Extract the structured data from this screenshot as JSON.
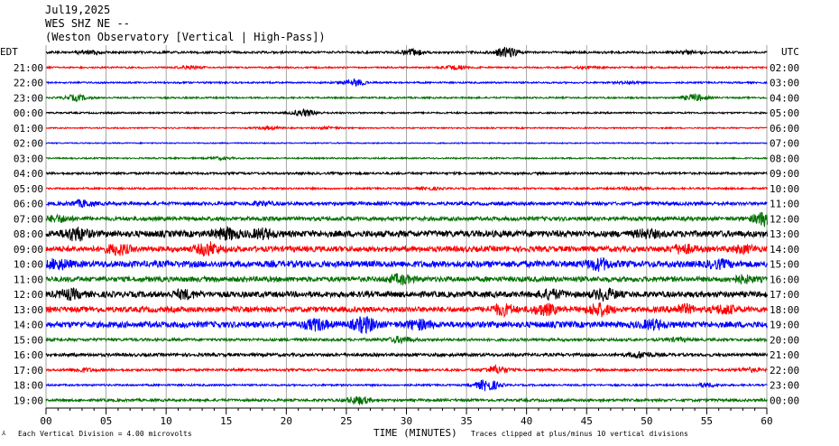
{
  "header": {
    "date": "Jul19,2025",
    "station": "WES SHZ NE --",
    "observatory": "(Weston Observatory [Vertical | High-Pass])"
  },
  "left_timezone": "EDT",
  "right_timezone": "UTC",
  "footer": {
    "scale_note": "Each Vertical Division =    4.00 microvolts",
    "clip_note": "Traces clipped at plus/minus 10 vertical divisions"
  },
  "trace_colors": [
    "#000000",
    "#ff0000",
    "#0000ff",
    "#007000"
  ],
  "chart_data": {
    "type": "line",
    "title": "",
    "xlabel": "TIME (MINUTES)",
    "xlim": [
      0,
      60
    ],
    "x_ticks": [
      "00",
      "05",
      "10",
      "15",
      "20",
      "25",
      "30",
      "35",
      "40",
      "45",
      "50",
      "55",
      "60"
    ],
    "left_labels": [
      "",
      "21:00",
      "22:00",
      "23:00",
      "00:00",
      "01:00",
      "02:00",
      "03:00",
      "04:00",
      "05:00",
      "06:00",
      "07:00",
      "08:00",
      "09:00",
      "10:00",
      "11:00",
      "12:00",
      "13:00",
      "14:00",
      "15:00",
      "16:00",
      "17:00",
      "18:00",
      "19:00"
    ],
    "right_labels": [
      "",
      "02:00",
      "03:00",
      "04:00",
      "05:00",
      "06:00",
      "07:00",
      "08:00",
      "09:00",
      "10:00",
      "11:00",
      "12:00",
      "13:00",
      "14:00",
      "15:00",
      "16:00",
      "17:00",
      "18:00",
      "19:00",
      "20:00",
      "21:00",
      "22:00",
      "23:00",
      "00:00"
    ],
    "traces": [
      {
        "noise": 1.2,
        "events": [
          [
            3.5,
            2.0
          ],
          [
            30.5,
            3.0
          ],
          [
            38.3,
            5.0
          ],
          [
            53.5,
            1.6
          ]
        ]
      },
      {
        "noise": 0.9,
        "events": [
          [
            12,
            1.5
          ],
          [
            34,
            2.0
          ],
          [
            45,
            1.3
          ]
        ]
      },
      {
        "noise": 0.9,
        "events": [
          [
            25.5,
            4.0
          ],
          [
            48.5,
            1.2
          ]
        ]
      },
      {
        "noise": 0.9,
        "events": [
          [
            2.5,
            3.0
          ],
          [
            54,
            3.5
          ]
        ]
      },
      {
        "noise": 0.9,
        "events": [
          [
            21.5,
            3.5
          ]
        ]
      },
      {
        "noise": 0.7,
        "events": [
          [
            18.5,
            1.5
          ],
          [
            23.5,
            1.2
          ]
        ]
      },
      {
        "noise": 0.6,
        "events": []
      },
      {
        "noise": 0.8,
        "events": [
          [
            14.5,
            1.2
          ]
        ]
      },
      {
        "noise": 1.2,
        "events": []
      },
      {
        "noise": 1.0,
        "events": [
          [
            32,
            1.2
          ],
          [
            49,
            1.5
          ]
        ]
      },
      {
        "noise": 1.8,
        "events": [
          [
            3,
            3.0
          ],
          [
            18,
            1.6
          ]
        ]
      },
      {
        "noise": 2.2,
        "events": [
          [
            1,
            3.0
          ],
          [
            59.8,
            7.0
          ]
        ]
      },
      {
        "noise": 3.5,
        "events": [
          [
            2.5,
            6.0
          ],
          [
            15,
            5.0
          ],
          [
            18,
            4.0
          ],
          [
            50,
            3.0
          ]
        ]
      },
      {
        "noise": 3.0,
        "events": [
          [
            6,
            5.0
          ],
          [
            13.5,
            6.0
          ],
          [
            53,
            4.0
          ],
          [
            58,
            3.0
          ]
        ]
      },
      {
        "noise": 3.5,
        "events": [
          [
            1,
            4.0
          ],
          [
            46,
            5.0
          ],
          [
            56,
            3.0
          ]
        ]
      },
      {
        "noise": 2.8,
        "events": [
          [
            29.5,
            4.0
          ],
          [
            58,
            3.0
          ]
        ]
      },
      {
        "noise": 3.2,
        "events": [
          [
            2,
            4.0
          ],
          [
            11.5,
            3.5
          ],
          [
            42,
            4.0
          ],
          [
            46.5,
            5.0
          ]
        ]
      },
      {
        "noise": 3.0,
        "events": [
          [
            38,
            5.0
          ],
          [
            41.5,
            5.0
          ],
          [
            46,
            6.0
          ],
          [
            53,
            4.0
          ],
          [
            56.5,
            4.0
          ]
        ]
      },
      {
        "noise": 3.3,
        "events": [
          [
            22.5,
            5.0
          ],
          [
            26.5,
            7.0
          ],
          [
            31,
            4.0
          ],
          [
            50.5,
            4.0
          ]
        ]
      },
      {
        "noise": 1.5,
        "events": [
          [
            29.5,
            3.0
          ],
          [
            52.5,
            1.5
          ]
        ]
      },
      {
        "noise": 1.7,
        "events": [
          [
            49.5,
            3.0
          ]
        ]
      },
      {
        "noise": 1.3,
        "events": [
          [
            3,
            1.8
          ],
          [
            37.5,
            4.0
          ],
          [
            58.5,
            1.8
          ]
        ]
      },
      {
        "noise": 1.0,
        "events": [
          [
            36.7,
            6.0
          ],
          [
            55,
            2.0
          ]
        ]
      },
      {
        "noise": 1.4,
        "events": [
          [
            26,
            4.0
          ]
        ]
      }
    ]
  }
}
